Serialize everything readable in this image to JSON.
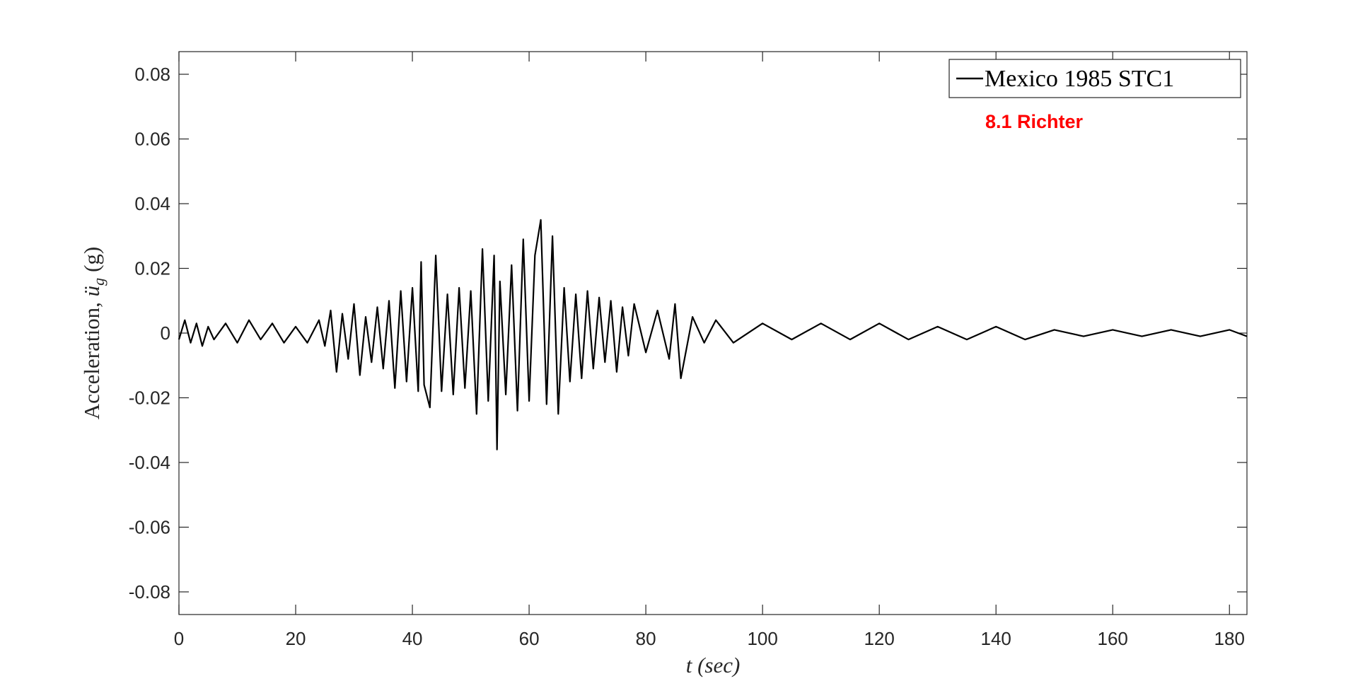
{
  "chart_data": {
    "type": "line",
    "title": "",
    "xlabel": "t (sec)",
    "ylabel": {
      "prefix": "Acceleration, ",
      "symbol": "ü",
      "subscript": "g",
      "unit": "(g)"
    },
    "xlim": [
      0,
      183
    ],
    "ylim": [
      -0.087,
      0.087
    ],
    "xticks": [
      0,
      20,
      40,
      60,
      80,
      100,
      120,
      140,
      160,
      180
    ],
    "xtick_labels": [
      "0",
      "20",
      "40",
      "60",
      "80",
      "100",
      "120",
      "140",
      "160",
      "180"
    ],
    "yticks": [
      0.08,
      0.06,
      0.04,
      0.02,
      0,
      -0.02,
      -0.04,
      -0.06,
      -0.08
    ],
    "ytick_labels": [
      "0.08",
      "0.06",
      "0.04",
      "0.02",
      "0",
      "-0.02",
      "-0.04",
      "-0.06",
      "-0.08"
    ],
    "grid": false,
    "legend_position": "top-right",
    "line_color": "#000000",
    "series": [
      {
        "name": "Mexico 1985 STC1",
        "x": [
          0,
          1,
          2,
          3,
          4,
          5,
          6,
          8,
          10,
          12,
          14,
          16,
          18,
          20,
          22,
          24,
          25,
          26,
          27,
          28,
          29,
          30,
          31,
          32,
          33,
          34,
          35,
          36,
          37,
          38,
          39,
          40,
          41,
          41.5,
          42,
          43,
          44,
          45,
          46,
          47,
          48,
          49,
          50,
          51,
          52,
          53,
          54,
          54.5,
          55,
          56,
          57,
          58,
          59,
          60,
          61,
          62,
          63,
          64,
          65,
          66,
          67,
          68,
          69,
          70,
          71,
          72,
          73,
          74,
          75,
          76,
          77,
          78,
          80,
          82,
          84,
          85,
          86,
          88,
          90,
          92,
          95,
          100,
          105,
          110,
          115,
          120,
          125,
          130,
          135,
          140,
          145,
          150,
          155,
          160,
          165,
          170,
          175,
          180,
          183
        ],
        "values": [
          -0.002,
          0.004,
          -0.003,
          0.003,
          -0.004,
          0.002,
          -0.002,
          0.003,
          -0.003,
          0.004,
          -0.002,
          0.003,
          -0.003,
          0.002,
          -0.003,
          0.004,
          -0.004,
          0.007,
          -0.012,
          0.006,
          -0.008,
          0.009,
          -0.013,
          0.005,
          -0.009,
          0.008,
          -0.011,
          0.01,
          -0.017,
          0.013,
          -0.015,
          0.014,
          -0.018,
          0.022,
          -0.016,
          -0.023,
          0.024,
          -0.018,
          0.012,
          -0.019,
          0.014,
          -0.017,
          0.013,
          -0.025,
          0.026,
          -0.021,
          0.024,
          -0.036,
          0.016,
          -0.019,
          0.021,
          -0.024,
          0.029,
          -0.021,
          0.024,
          0.035,
          -0.022,
          0.03,
          -0.025,
          0.014,
          -0.015,
          0.012,
          -0.014,
          0.013,
          -0.011,
          0.011,
          -0.009,
          0.01,
          -0.012,
          0.008,
          -0.007,
          0.009,
          -0.006,
          0.007,
          -0.008,
          0.009,
          -0.014,
          0.005,
          -0.003,
          0.004,
          -0.003,
          0.003,
          -0.002,
          0.003,
          -0.002,
          0.003,
          -0.002,
          0.002,
          -0.002,
          0.002,
          -0.002,
          0.001,
          -0.001,
          0.001,
          -0.001,
          0.001,
          -0.001,
          0.001,
          -0.001
        ]
      }
    ],
    "annotations": [
      {
        "text": "8.1 Richter",
        "color": "#ff0000",
        "position": "top-right, below legend"
      }
    ]
  }
}
